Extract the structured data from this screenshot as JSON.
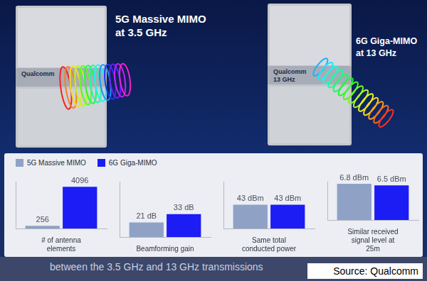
{
  "header": {
    "devices": [
      {
        "title_lines": [
          "5G Massive MIMO",
          "at 3.5 GHz"
        ],
        "panel_texts": [
          "Qualcomm"
        ]
      },
      {
        "title_lines": [
          "6G Giga-MIMO",
          "at 13 GHz"
        ],
        "panel_texts": [
          "Qualcomm",
          "13 GHz"
        ]
      }
    ]
  },
  "chart_data": [
    {
      "type": "bar",
      "categories": [
        "# of antenna elements"
      ],
      "series": [
        {
          "name": "5G Massive MIMO",
          "color": "#8fa2c6",
          "values": [
            256
          ]
        },
        {
          "name": "6G Giga-MIMO",
          "color": "#1c1cf5",
          "values": [
            4096
          ]
        }
      ],
      "ylim": [
        0,
        4600
      ],
      "data_labels": true,
      "tick_labels": "x",
      "grid": false
    },
    {
      "type": "bar",
      "categories": [
        "Beamforming gain"
      ],
      "series": [
        {
          "name": "5G Massive MIMO",
          "color": "#8fa2c6",
          "values": [
            21
          ],
          "value_labels": [
            "21 dB"
          ]
        },
        {
          "name": "6G Giga-MIMO",
          "color": "#1c1cf5",
          "values": [
            33
          ],
          "value_labels": [
            "33 dB"
          ]
        }
      ],
      "ylim": [
        0,
        80
      ],
      "data_labels": true,
      "tick_labels": "x",
      "grid": false
    },
    {
      "type": "bar",
      "categories": [
        "Same total conducted power"
      ],
      "series": [
        {
          "name": "5G Massive MIMO",
          "color": "#8fa2c6",
          "values": [
            43
          ],
          "value_labels": [
            "43 dBm"
          ]
        },
        {
          "name": "6G Giga-MIMO",
          "color": "#1c1cf5",
          "values": [
            43
          ],
          "value_labels": [
            "43 dBm"
          ]
        }
      ],
      "ylim": [
        0,
        85
      ],
      "data_labels": true,
      "tick_labels": "x",
      "grid": false
    },
    {
      "type": "bar",
      "categories": [
        "Similar received signal level at 25m"
      ],
      "series": [
        {
          "name": "5G Massive MIMO",
          "color": "#8fa2c6",
          "values": [
            6.8
          ],
          "value_labels": [
            "6.8 dBm"
          ]
        },
        {
          "name": "6G Giga-MIMO",
          "color": "#1c1cf5",
          "values": [
            6.5
          ],
          "value_labels": [
            "6.5 dBm"
          ]
        }
      ],
      "ylim": [
        0,
        7.2
      ],
      "data_labels": true,
      "tick_labels": "x",
      "grid": false
    }
  ],
  "caption": "between the 3.5 GHz and 13 GHz transmissions",
  "source": "Source: Qualcomm"
}
